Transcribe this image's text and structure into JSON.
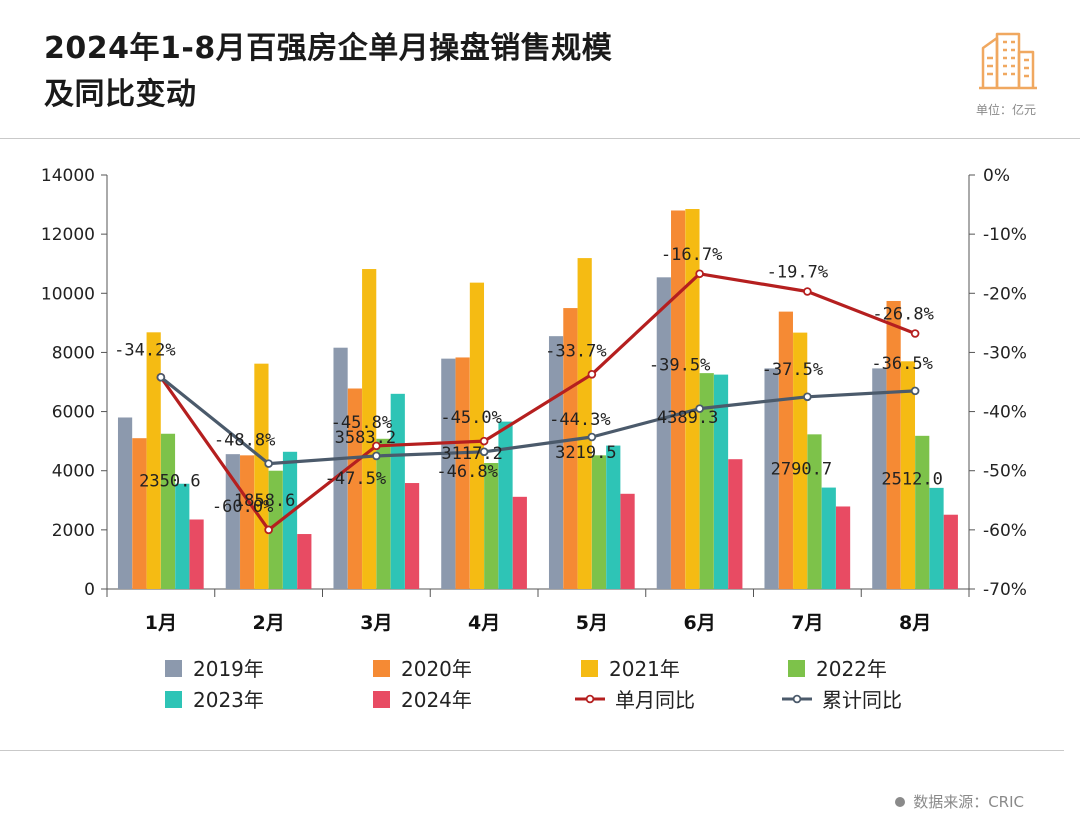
{
  "header": {
    "title_line1": "2024年1-8月百强房企单月操盘销售规模",
    "title_line2": "及同比变动",
    "unit": "单位：亿元"
  },
  "footer": {
    "source": "数据来源：CRIC"
  },
  "colors": {
    "y2019": "#8c99ad",
    "y2020": "#f58a34",
    "y2021": "#f5bb13",
    "y2022": "#7dc24a",
    "y2023": "#2ec4b6",
    "y2024": "#e84b63",
    "monthly": "#b51f1f",
    "cumulative": "#4b5a6b"
  },
  "chart_data": {
    "type": "bar",
    "categories": [
      "1月",
      "2月",
      "3月",
      "4月",
      "5月",
      "6月",
      "7月",
      "8月"
    ],
    "series": [
      {
        "name": "2019年",
        "key": "y2019",
        "values": [
          5800,
          4560,
          8160,
          7790,
          8550,
          10540,
          7460,
          7460
        ]
      },
      {
        "name": "2020年",
        "key": "y2020",
        "values": [
          5100,
          4520,
          6780,
          7830,
          9500,
          12800,
          9380,
          9740
        ]
      },
      {
        "name": "2021年",
        "key": "y2021",
        "values": [
          8680,
          7620,
          10820,
          10360,
          11190,
          12850,
          8670,
          7700
        ]
      },
      {
        "name": "2022年",
        "key": "y2022",
        "values": [
          5250,
          4000,
          5080,
          4260,
          4520,
          7300,
          5230,
          5180
        ]
      },
      {
        "name": "2023年",
        "key": "y2023",
        "values": [
          3560,
          4640,
          6600,
          5660,
          4850,
          7250,
          3430,
          3420
        ]
      },
      {
        "name": "2024年",
        "key": "y2024",
        "values": [
          2350.6,
          1858.6,
          3583.2,
          3117.2,
          3219.5,
          4389.3,
          2790.7,
          2512.0
        ]
      }
    ],
    "line_series": [
      {
        "name": "单月同比",
        "key": "monthly",
        "values": [
          -34.2,
          -60.0,
          -45.8,
          -45.0,
          -33.7,
          -16.7,
          -19.7,
          -26.8
        ]
      },
      {
        "name": "累计同比",
        "key": "cumulative",
        "values": [
          -34.2,
          -48.8,
          -47.5,
          -46.8,
          -44.3,
          -39.5,
          -37.5,
          -36.5
        ]
      }
    ],
    "bar_labels": [
      "2350.6",
      "1858.6",
      "3583.2",
      "3117.2",
      "3219.5",
      "4389.3",
      "2790.7",
      "2512.0"
    ],
    "monthly_labels": [
      "",
      "-60.0%",
      "-45.8%",
      "-45.0%",
      "-33.7%",
      "-16.7%",
      "-19.7%",
      "-26.8%"
    ],
    "cumulative_labels": [
      "-34.2%",
      "-48.8%",
      "-47.5%",
      "-46.8%",
      "-44.3%",
      "-39.5%",
      "-37.5%",
      "-36.5%"
    ],
    "ylim": [
      0,
      14000
    ],
    "yticks": [
      "0",
      "2000",
      "4000",
      "6000",
      "8000",
      "10000",
      "12000",
      "14000"
    ],
    "y2lim": [
      -70,
      0
    ],
    "y2ticks": [
      "0%",
      "-10%",
      "-20%",
      "-30%",
      "-40%",
      "-50%",
      "-60%",
      "-70%"
    ],
    "legend": [
      "2019年",
      "2020年",
      "2021年",
      "2022年",
      "2023年",
      "2024年",
      "单月同比",
      "累计同比"
    ]
  }
}
